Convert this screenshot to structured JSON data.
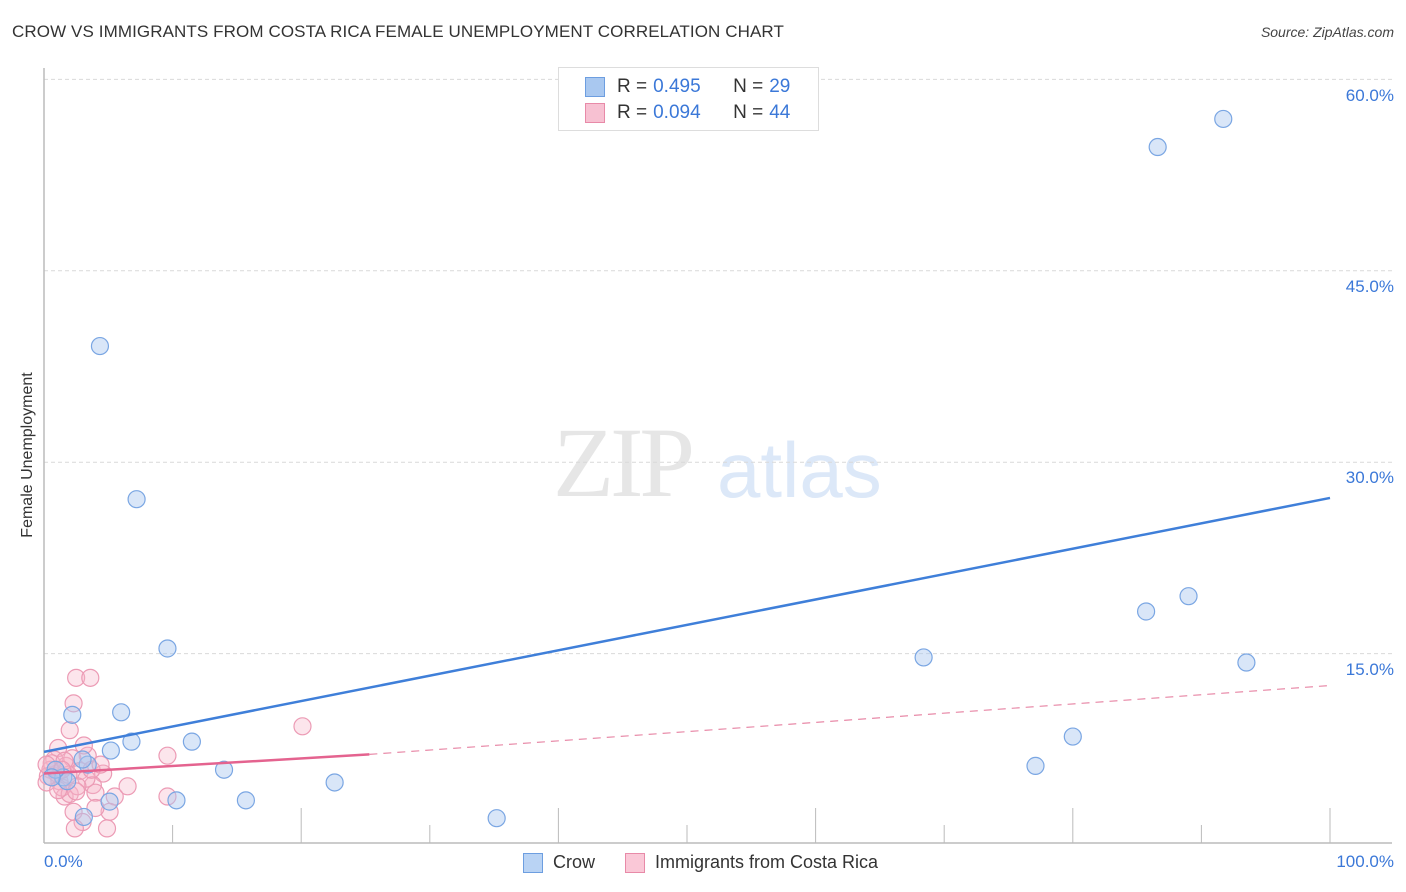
{
  "header": {
    "title": "CROW VS IMMIGRANTS FROM COSTA RICA FEMALE UNEMPLOYMENT CORRELATION CHART",
    "source": "Source: ZipAtlas.com"
  },
  "watermark": {
    "zip": "ZIP",
    "atlas": "atlas"
  },
  "legend": {
    "rows": [
      {
        "r_label": "R =",
        "r_value": "0.495",
        "n_label": "N =",
        "n_value": "29",
        "color": "#a9c8f0",
        "border": "#6d9ee0"
      },
      {
        "r_label": "R =",
        "r_value": "0.094",
        "n_label": "N =",
        "n_value": "44",
        "color": "#f7c1d2",
        "border": "#e88aa8"
      }
    ]
  },
  "bottom_legend": {
    "items": [
      {
        "label": "Crow",
        "color": "#b9d3f4",
        "border": "#6d9ee0"
      },
      {
        "label": "Immigrants from Costa Rica",
        "color": "#fac8d7",
        "border": "#e88aa8"
      }
    ]
  },
  "axes": {
    "y_label": "Female Unemployment",
    "y_ticks": [
      "60.0%",
      "45.0%",
      "30.0%",
      "15.0%"
    ],
    "x_ticks": [
      "0.0%",
      "100.0%"
    ]
  },
  "colors": {
    "crow": "#3f7fd9",
    "crow_fill": "rgba(170,200,240,0.45)",
    "costa_rica": "#e4638f",
    "costa_rica_fill": "rgba(247,180,200,0.35)",
    "tick_text": "#3b78d8"
  },
  "chart_data": {
    "type": "scatter",
    "title": "CROW VS IMMIGRANTS FROM COSTA RICA FEMALE UNEMPLOYMENT CORRELATION CHART",
    "xlabel": "",
    "ylabel": "Female Unemployment",
    "xlim": [
      0,
      100
    ],
    "ylim": [
      0,
      62
    ],
    "x_ticks": [
      0,
      100
    ],
    "y_ticks": [
      15,
      30,
      45,
      60
    ],
    "grid": true,
    "legend_position": "top-center",
    "series": [
      {
        "name": "Crow",
        "R": 0.495,
        "N": 29,
        "points": [
          [
            4.35,
            39.1
          ],
          [
            7.2,
            27.1
          ],
          [
            9.6,
            15.4
          ],
          [
            2.2,
            10.2
          ],
          [
            6.0,
            10.4
          ],
          [
            5.2,
            7.4
          ],
          [
            6.8,
            8.1
          ],
          [
            11.5,
            8.1
          ],
          [
            3.4,
            6.3
          ],
          [
            1.5,
            5.3
          ],
          [
            1.8,
            5.0
          ],
          [
            14.0,
            5.9
          ],
          [
            10.3,
            3.5
          ],
          [
            15.7,
            3.5
          ],
          [
            5.1,
            3.4
          ],
          [
            3.1,
            2.2
          ],
          [
            22.6,
            4.9
          ],
          [
            35.2,
            2.1
          ],
          [
            68.4,
            14.7
          ],
          [
            77.1,
            6.2
          ],
          [
            80.0,
            8.5
          ],
          [
            85.7,
            18.3
          ],
          [
            89.0,
            19.5
          ],
          [
            93.5,
            14.3
          ],
          [
            86.6,
            54.7
          ],
          [
            91.7,
            56.9
          ],
          [
            0.9,
            5.9
          ],
          [
            0.6,
            5.3
          ],
          [
            3.0,
            6.7
          ]
        ],
        "trend": {
          "x": [
            0,
            100
          ],
          "y": [
            7.3,
            27.2
          ],
          "style": "solid"
        }
      },
      {
        "name": "Immigrants from Costa Rica",
        "R": 0.094,
        "N": 44,
        "points": [
          [
            2.5,
            13.1
          ],
          [
            3.6,
            13.1
          ],
          [
            2.3,
            11.1
          ],
          [
            2.0,
            9.0
          ],
          [
            20.1,
            9.3
          ],
          [
            9.6,
            7.0
          ],
          [
            1.1,
            7.6
          ],
          [
            3.4,
            7.0
          ],
          [
            4.6,
            5.6
          ],
          [
            6.5,
            4.6
          ],
          [
            9.6,
            3.8
          ],
          [
            3.8,
            4.7
          ],
          [
            5.5,
            3.8
          ],
          [
            4.0,
            4.1
          ],
          [
            5.1,
            2.6
          ],
          [
            2.3,
            2.6
          ],
          [
            3.0,
            1.8
          ],
          [
            4.9,
            1.3
          ],
          [
            2.4,
            1.3
          ],
          [
            1.6,
            3.8
          ],
          [
            0.8,
            6.7
          ],
          [
            0.5,
            5.9
          ],
          [
            0.3,
            5.4
          ],
          [
            1.2,
            5.0
          ],
          [
            1.7,
            6.2
          ],
          [
            2.2,
            6.8
          ],
          [
            2.8,
            5.8
          ],
          [
            3.3,
            5.2
          ],
          [
            1.4,
            4.5
          ],
          [
            2.0,
            4.0
          ],
          [
            2.6,
            4.6
          ],
          [
            1.0,
            5.6
          ],
          [
            0.2,
            4.9
          ],
          [
            0.6,
            6.4
          ],
          [
            1.9,
            5.5
          ],
          [
            3.7,
            5.9
          ],
          [
            1.1,
            4.3
          ],
          [
            3.1,
            7.8
          ],
          [
            1.6,
            6.6
          ],
          [
            4.4,
            6.3
          ],
          [
            0.2,
            6.3
          ],
          [
            2.5,
            4.2
          ],
          [
            1.4,
            5.9
          ],
          [
            4.0,
            2.9
          ]
        ],
        "trend": {
          "x": [
            0,
            25.3,
            100
          ],
          "y": [
            5.6,
            7.1,
            12.5
          ],
          "style": "solid-then-dashed"
        }
      }
    ]
  }
}
